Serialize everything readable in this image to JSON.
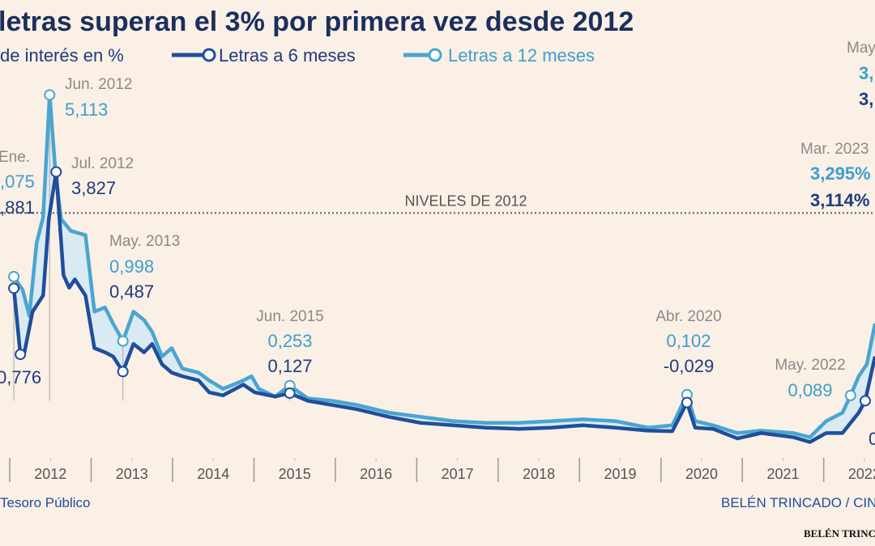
{
  "chart_data": {
    "type": "line",
    "title": "letras superan el 3% por primera vez desde 2012",
    "y_label": "de interés en %",
    "xlim": [
      2011.88,
      2022.63
    ],
    "ylim": [
      -0.9,
      6.7
    ],
    "xticks": [
      {
        "value": 2012.5,
        "label": "2012"
      },
      {
        "value": 2013.5,
        "label": "2013"
      },
      {
        "value": 2014.5,
        "label": "2014"
      },
      {
        "value": 2015.5,
        "label": "2015"
      },
      {
        "value": 2016.5,
        "label": "2016"
      },
      {
        "value": 2017.5,
        "label": "2017"
      },
      {
        "value": 2018.5,
        "label": "2018"
      },
      {
        "value": 2019.5,
        "label": "2019"
      },
      {
        "value": 2020.5,
        "label": "2020"
      },
      {
        "value": 2021.5,
        "label": "2021"
      },
      {
        "value": 2022.5,
        "label": "2022"
      }
    ],
    "reference_line": {
      "label": "NIVELES DE 2012",
      "value": 3.14
    },
    "series": [
      {
        "name": "Letras a 6 meses",
        "color": "#1f4e9b",
        "x": [
          2012.05,
          2012.13,
          2012.18,
          2012.28,
          2012.41,
          2012.48,
          2012.57,
          2012.66,
          2012.73,
          2012.8,
          2012.93,
          2013.04,
          2013.17,
          2013.27,
          2013.39,
          2013.52,
          2013.65,
          2013.75,
          2013.87,
          2013.99,
          2014.12,
          2014.32,
          2014.45,
          2014.62,
          2014.87,
          2015.01,
          2015.26,
          2015.44,
          2015.66,
          2015.96,
          2016.26,
          2016.66,
          2017.05,
          2017.45,
          2017.85,
          2018.25,
          2018.65,
          2019.04,
          2019.44,
          2019.84,
          2020.14,
          2020.32,
          2020.42,
          2020.64,
          2020.94,
          2021.23,
          2021.63,
          2021.83,
          2022.03,
          2022.23,
          2022.43,
          2022.51,
          2022.63
        ],
        "values": [
          1.881,
          0.776,
          0.81,
          1.49,
          1.76,
          3.04,
          3.827,
          2.1,
          1.89,
          2.03,
          1.76,
          0.88,
          0.81,
          0.74,
          0.487,
          0.95,
          0.81,
          0.95,
          0.61,
          0.47,
          0.41,
          0.34,
          0.14,
          0.09,
          0.27,
          0.14,
          0.07,
          0.127,
          0,
          -0.07,
          -0.14,
          -0.27,
          -0.37,
          -0.41,
          -0.45,
          -0.47,
          -0.45,
          -0.41,
          -0.45,
          -0.5,
          -0.51,
          -0.029,
          -0.45,
          -0.47,
          -0.63,
          -0.54,
          -0.61,
          -0.69,
          -0.54,
          -0.54,
          -0.2,
          0,
          0.74
        ]
      },
      {
        "name": "Letras a 12 meses",
        "color": "#4aa5cf",
        "x": [
          2012.05,
          2012.16,
          2012.24,
          2012.33,
          2012.41,
          2012.49,
          2012.56,
          2012.63,
          2012.75,
          2012.93,
          2013.04,
          2013.17,
          2013.27,
          2013.39,
          2013.52,
          2013.65,
          2013.75,
          2013.87,
          2013.99,
          2014.12,
          2014.32,
          2014.45,
          2014.62,
          2014.87,
          2014.97,
          2015.06,
          2015.26,
          2015.44,
          2015.66,
          2015.96,
          2016.26,
          2016.66,
          2017.05,
          2017.45,
          2017.85,
          2018.25,
          2018.65,
          2019.04,
          2019.44,
          2019.84,
          2020.14,
          2020.32,
          2020.42,
          2020.64,
          2020.94,
          2021.23,
          2021.63,
          2021.83,
          2022.03,
          2022.23,
          2022.33,
          2022.43,
          2022.53,
          2022.63
        ],
        "values": [
          2.075,
          1.85,
          1.42,
          2.64,
          3.07,
          5.113,
          3.85,
          3.04,
          2.84,
          2.77,
          1.49,
          1.56,
          1.29,
          0.998,
          1.49,
          1.35,
          1.15,
          0.74,
          0.88,
          0.54,
          0.47,
          0.34,
          0.2,
          0.34,
          0.41,
          0.2,
          0.07,
          0.253,
          0.04,
          0,
          -0.07,
          -0.2,
          -0.27,
          -0.34,
          -0.37,
          -0.37,
          -0.34,
          -0.31,
          -0.34,
          -0.45,
          -0.41,
          0.102,
          -0.34,
          -0.41,
          -0.54,
          -0.5,
          -0.54,
          -0.61,
          -0.34,
          -0.2,
          0.089,
          0.41,
          0.61,
          1.29
        ]
      }
    ],
    "annotations": [
      "Ene.",
      ",075",
      ",881",
      "0,776",
      "Jun. 2012",
      "5,113",
      "Jul. 2012",
      "3,827",
      "May. 2013",
      "0,998",
      "0,487",
      "Jun. 2015",
      "0,253",
      "0,127",
      "Abr. 2020",
      "0,102",
      "-0,029",
      "May. 2022",
      "0,089",
      "0",
      "Mar. 2023",
      "3,295%",
      "3,114%",
      "May",
      "3,",
      "3,"
    ],
    "source": "Tesoro Público",
    "credit": "BELÉN TRINCADO / CIN",
    "credit_small": "BELÉN TRINC"
  }
}
